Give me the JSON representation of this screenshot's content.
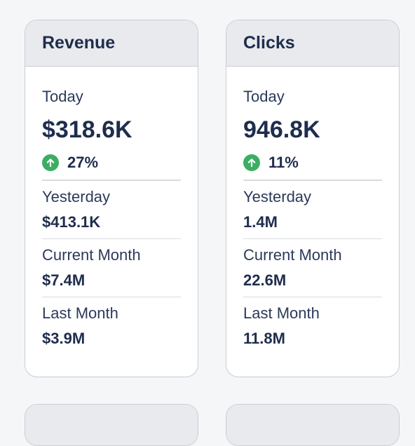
{
  "cards": [
    {
      "title": "Revenue",
      "today_label": "Today",
      "today_value": "$318.6K",
      "change": "27%",
      "stats": [
        {
          "label": "Yesterday",
          "value": "$413.1K"
        },
        {
          "label": "Current Month",
          "value": "$7.4M"
        },
        {
          "label": "Last Month",
          "value": "$3.9M"
        }
      ]
    },
    {
      "title": "Clicks",
      "today_label": "Today",
      "today_value": "946.8K",
      "change": "11%",
      "stats": [
        {
          "label": "Yesterday",
          "value": "1.4M"
        },
        {
          "label": "Current Month",
          "value": "22.6M"
        },
        {
          "label": "Last Month",
          "value": "11.8M"
        }
      ]
    }
  ],
  "icons": {
    "change_icon": "arrow-up-icon"
  },
  "colors": {
    "positive": "#3cae63",
    "text": "#1f2d4d",
    "header_bg": "#e8eaee",
    "page_bg": "#f5f6f8"
  }
}
